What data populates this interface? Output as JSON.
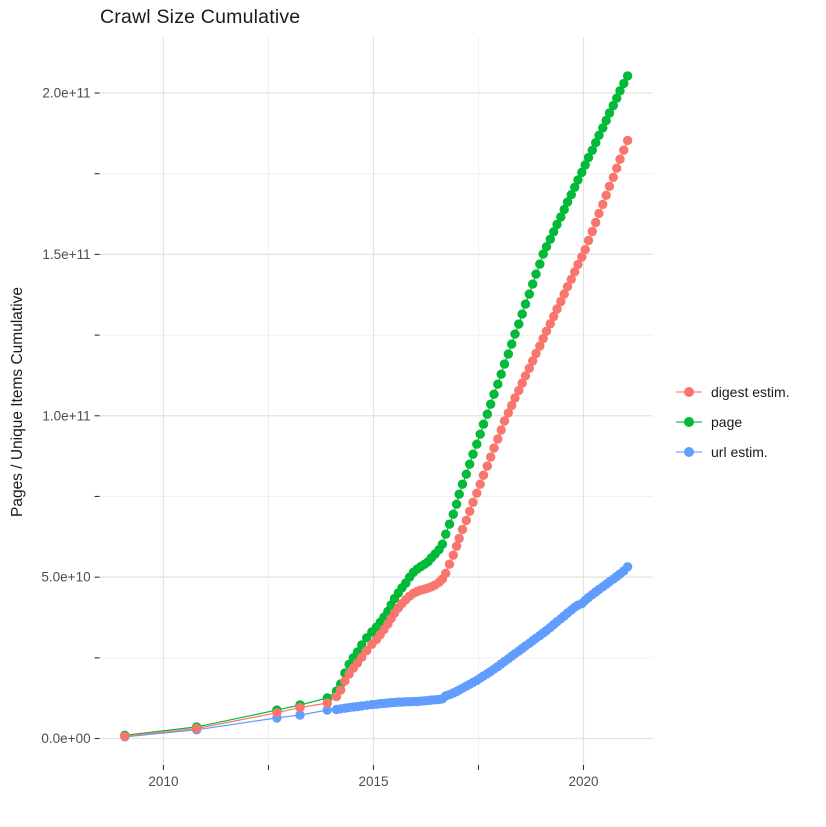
{
  "title": "Crawl Size Cumulative",
  "colors": {
    "digest": "#F8766D",
    "page": "#00BA38",
    "url": "#619CFF",
    "grid_major": "#e3e3e3",
    "grid_minor": "#f0f0f0",
    "tick_mark": "#333333",
    "tick_label": "#4d4d4d",
    "text": "#1a1a1a",
    "background": "#ffffff"
  },
  "legend": {
    "items": [
      {
        "id": "digest",
        "label": "digest estim."
      },
      {
        "id": "page",
        "label": "page"
      },
      {
        "id": "url",
        "label": "url estim."
      }
    ]
  },
  "chart_data": {
    "type": "scatter",
    "title": "Crawl Size Cumulative",
    "xlabel": "",
    "ylabel": "Pages / Unique Items Cumulative",
    "legend_position": "right",
    "grid": true,
    "xlim": [
      2008.48,
      2021.65
    ],
    "ylim_e9": [
      -8.2,
      217.3
    ],
    "x_major_ticks": [
      2010,
      2015,
      2020
    ],
    "x_tick_labels": [
      "2010",
      "2015",
      "2020"
    ],
    "x_minor_ticks": [
      2012.5,
      2017.5
    ],
    "y_major_ticks_e9": [
      0,
      50,
      100,
      150,
      200
    ],
    "y_tick_labels": [
      "0.0e+00",
      "5.0e+10",
      "1.0e+11",
      "1.5e+11",
      "2.0e+11"
    ],
    "y_minor_ticks_e9": [
      25,
      75,
      125,
      175
    ],
    "points_unit": "billions of pages / unique items (value * 1e9)",
    "series": [
      {
        "id": "page",
        "name": "page",
        "color": "#00BA38",
        "points": [
          [
            2009.08,
            1.0
          ],
          [
            2010.79,
            3.6
          ],
          [
            2012.7,
            8.8
          ],
          [
            2013.25,
            10.4
          ],
          [
            2013.9,
            12.6
          ],
          [
            2014.12,
            14.7
          ],
          [
            2014.22,
            16.9
          ],
          [
            2014.32,
            20.3
          ],
          [
            2014.42,
            23.0
          ],
          [
            2014.52,
            25.0
          ],
          [
            2014.62,
            26.8
          ],
          [
            2014.72,
            29.0
          ],
          [
            2014.84,
            31.2
          ],
          [
            2014.96,
            33.0
          ],
          [
            2015.07,
            34.5
          ],
          [
            2015.16,
            36.0
          ],
          [
            2015.25,
            37.6
          ],
          [
            2015.34,
            39.4
          ],
          [
            2015.42,
            41.4
          ],
          [
            2015.5,
            43.4
          ],
          [
            2015.59,
            45.1
          ],
          [
            2015.68,
            46.7
          ],
          [
            2015.77,
            48.2
          ],
          [
            2015.86,
            50.0
          ],
          [
            2015.95,
            51.5
          ],
          [
            2016.04,
            52.5
          ],
          [
            2016.13,
            53.3
          ],
          [
            2016.22,
            54.0
          ],
          [
            2016.3,
            54.8
          ],
          [
            2016.38,
            56.0
          ],
          [
            2016.47,
            57.2
          ],
          [
            2016.56,
            58.5
          ],
          [
            2016.64,
            60.2
          ],
          [
            2016.72,
            63.3
          ],
          [
            2016.81,
            66.4
          ],
          [
            2016.9,
            69.5
          ],
          [
            2016.98,
            72.6
          ],
          [
            2017.04,
            75.7
          ],
          [
            2017.12,
            78.8
          ],
          [
            2017.21,
            81.9
          ],
          [
            2017.29,
            85.0
          ],
          [
            2017.37,
            88.1
          ],
          [
            2017.46,
            91.2
          ],
          [
            2017.54,
            94.3
          ],
          [
            2017.62,
            97.4
          ],
          [
            2017.71,
            100.5
          ],
          [
            2017.79,
            103.6
          ],
          [
            2017.87,
            106.7
          ],
          [
            2017.96,
            109.8
          ],
          [
            2018.04,
            112.9
          ],
          [
            2018.12,
            116.0
          ],
          [
            2018.21,
            119.1
          ],
          [
            2018.29,
            122.2
          ],
          [
            2018.37,
            125.3
          ],
          [
            2018.46,
            128.4
          ],
          [
            2018.54,
            131.5
          ],
          [
            2018.62,
            134.6
          ],
          [
            2018.71,
            137.7
          ],
          [
            2018.79,
            140.8
          ],
          [
            2018.87,
            143.9
          ],
          [
            2018.96,
            147.0
          ],
          [
            2019.04,
            150.1
          ],
          [
            2019.12,
            152.4
          ],
          [
            2019.21,
            154.7
          ],
          [
            2019.29,
            157.0
          ],
          [
            2019.37,
            159.3
          ],
          [
            2019.46,
            161.6
          ],
          [
            2019.54,
            163.9
          ],
          [
            2019.62,
            166.2
          ],
          [
            2019.71,
            168.5
          ],
          [
            2019.79,
            170.8
          ],
          [
            2019.87,
            173.1
          ],
          [
            2019.96,
            175.4
          ],
          [
            2020.04,
            177.7
          ],
          [
            2020.12,
            180.0
          ],
          [
            2020.21,
            182.3
          ],
          [
            2020.29,
            184.6
          ],
          [
            2020.37,
            186.9
          ],
          [
            2020.46,
            189.2
          ],
          [
            2020.54,
            191.5
          ],
          [
            2020.62,
            193.8
          ],
          [
            2020.71,
            196.1
          ],
          [
            2020.79,
            198.4
          ],
          [
            2020.87,
            200.7
          ],
          [
            2020.96,
            203.0
          ],
          [
            2021.05,
            205.3
          ]
        ]
      },
      {
        "id": "url",
        "name": "url estim.",
        "color": "#619CFF",
        "points": [
          [
            2009.08,
            0.55
          ],
          [
            2010.79,
            2.7
          ],
          [
            2012.7,
            6.4
          ],
          [
            2013.25,
            7.3
          ],
          [
            2013.9,
            8.8
          ],
          [
            2014.12,
            9.0
          ],
          [
            2014.22,
            9.2
          ],
          [
            2014.32,
            9.4
          ],
          [
            2014.42,
            9.6
          ],
          [
            2014.52,
            9.8
          ],
          [
            2014.62,
            9.9
          ],
          [
            2014.72,
            10.1
          ],
          [
            2014.84,
            10.3
          ],
          [
            2014.96,
            10.5
          ],
          [
            2015.07,
            10.6
          ],
          [
            2015.16,
            10.8
          ],
          [
            2015.25,
            10.9
          ],
          [
            2015.34,
            11.0
          ],
          [
            2015.42,
            11.1
          ],
          [
            2015.5,
            11.2
          ],
          [
            2015.59,
            11.3
          ],
          [
            2015.68,
            11.3
          ],
          [
            2015.77,
            11.4
          ],
          [
            2015.86,
            11.4
          ],
          [
            2015.95,
            11.5
          ],
          [
            2016.04,
            11.5
          ],
          [
            2016.13,
            11.6
          ],
          [
            2016.22,
            11.7
          ],
          [
            2016.3,
            11.8
          ],
          [
            2016.38,
            11.9
          ],
          [
            2016.47,
            12.0
          ],
          [
            2016.56,
            12.1
          ],
          [
            2016.64,
            12.3
          ],
          [
            2016.72,
            13.2
          ],
          [
            2016.81,
            13.6
          ],
          [
            2016.9,
            14.1
          ],
          [
            2016.98,
            14.6
          ],
          [
            2017.04,
            15.0
          ],
          [
            2017.12,
            15.6
          ],
          [
            2017.21,
            16.2
          ],
          [
            2017.29,
            16.8
          ],
          [
            2017.37,
            17.4
          ],
          [
            2017.46,
            18.0
          ],
          [
            2017.54,
            18.7
          ],
          [
            2017.62,
            19.4
          ],
          [
            2017.71,
            20.1
          ],
          [
            2017.79,
            20.8
          ],
          [
            2017.87,
            21.5
          ],
          [
            2017.96,
            22.3
          ],
          [
            2018.04,
            23.1
          ],
          [
            2018.12,
            23.9
          ],
          [
            2018.21,
            24.7
          ],
          [
            2018.29,
            25.5
          ],
          [
            2018.37,
            26.3
          ],
          [
            2018.46,
            27.1
          ],
          [
            2018.54,
            27.9
          ],
          [
            2018.62,
            28.7
          ],
          [
            2018.71,
            29.5
          ],
          [
            2018.79,
            30.3
          ],
          [
            2018.87,
            31.1
          ],
          [
            2018.96,
            31.9
          ],
          [
            2019.04,
            32.7
          ],
          [
            2019.12,
            33.5
          ],
          [
            2019.21,
            34.4
          ],
          [
            2019.29,
            35.3
          ],
          [
            2019.37,
            36.2
          ],
          [
            2019.46,
            37.1
          ],
          [
            2019.54,
            38.0
          ],
          [
            2019.62,
            38.9
          ],
          [
            2019.71,
            39.8
          ],
          [
            2019.79,
            40.7
          ],
          [
            2019.87,
            41.3
          ],
          [
            2019.96,
            41.8
          ],
          [
            2020.04,
            42.8
          ],
          [
            2020.12,
            43.7
          ],
          [
            2020.21,
            44.6
          ],
          [
            2020.29,
            45.4
          ],
          [
            2020.37,
            46.2
          ],
          [
            2020.46,
            47.0
          ],
          [
            2020.54,
            47.8
          ],
          [
            2020.62,
            48.6
          ],
          [
            2020.71,
            49.4
          ],
          [
            2020.79,
            50.2
          ],
          [
            2020.87,
            51.0
          ],
          [
            2020.96,
            51.9
          ],
          [
            2021.05,
            53.2
          ]
        ]
      },
      {
        "id": "digest",
        "name": "digest estim.",
        "color": "#F8766D",
        "points": [
          [
            2009.08,
            0.7
          ],
          [
            2010.79,
            3.1
          ],
          [
            2012.7,
            8.0
          ],
          [
            2013.25,
            9.6
          ],
          [
            2013.9,
            11.0
          ],
          [
            2014.12,
            13.0
          ],
          [
            2014.22,
            15.0
          ],
          [
            2014.32,
            17.8
          ],
          [
            2014.42,
            20.0
          ],
          [
            2014.52,
            21.8
          ],
          [
            2014.62,
            23.4
          ],
          [
            2014.72,
            25.2
          ],
          [
            2014.84,
            27.2
          ],
          [
            2014.96,
            29.2
          ],
          [
            2015.07,
            30.7
          ],
          [
            2015.16,
            32.2
          ],
          [
            2015.25,
            33.8
          ],
          [
            2015.34,
            35.5
          ],
          [
            2015.42,
            37.2
          ],
          [
            2015.5,
            38.9
          ],
          [
            2015.59,
            40.4
          ],
          [
            2015.68,
            41.8
          ],
          [
            2015.77,
            43.0
          ],
          [
            2015.86,
            44.1
          ],
          [
            2015.95,
            45.0
          ],
          [
            2016.04,
            45.6
          ],
          [
            2016.13,
            46.0
          ],
          [
            2016.22,
            46.3
          ],
          [
            2016.3,
            46.6
          ],
          [
            2016.38,
            47.0
          ],
          [
            2016.47,
            47.6
          ],
          [
            2016.56,
            48.4
          ],
          [
            2016.64,
            49.4
          ],
          [
            2016.72,
            51.2
          ],
          [
            2016.81,
            54.0
          ],
          [
            2016.9,
            56.8
          ],
          [
            2016.98,
            59.6
          ],
          [
            2017.04,
            62.0
          ],
          [
            2017.12,
            64.8
          ],
          [
            2017.21,
            67.6
          ],
          [
            2017.29,
            70.4
          ],
          [
            2017.37,
            73.2
          ],
          [
            2017.46,
            76.0
          ],
          [
            2017.54,
            78.8
          ],
          [
            2017.62,
            81.6
          ],
          [
            2017.71,
            84.4
          ],
          [
            2017.79,
            87.2
          ],
          [
            2017.87,
            90.0
          ],
          [
            2017.96,
            92.8
          ],
          [
            2018.04,
            95.6
          ],
          [
            2018.12,
            98.4
          ],
          [
            2018.21,
            100.9
          ],
          [
            2018.29,
            103.2
          ],
          [
            2018.37,
            105.5
          ],
          [
            2018.46,
            107.8
          ],
          [
            2018.54,
            110.1
          ],
          [
            2018.62,
            112.4
          ],
          [
            2018.71,
            114.7
          ],
          [
            2018.79,
            117.0
          ],
          [
            2018.87,
            119.3
          ],
          [
            2018.96,
            121.6
          ],
          [
            2019.04,
            123.9
          ],
          [
            2019.12,
            126.2
          ],
          [
            2019.21,
            128.5
          ],
          [
            2019.29,
            130.8
          ],
          [
            2019.37,
            133.1
          ],
          [
            2019.46,
            135.4
          ],
          [
            2019.54,
            137.7
          ],
          [
            2019.62,
            140.0
          ],
          [
            2019.71,
            142.3
          ],
          [
            2019.79,
            144.6
          ],
          [
            2019.87,
            146.9
          ],
          [
            2019.96,
            149.2
          ],
          [
            2020.04,
            151.5
          ],
          [
            2020.12,
            154.3
          ],
          [
            2020.21,
            157.1
          ],
          [
            2020.29,
            159.9
          ],
          [
            2020.37,
            162.7
          ],
          [
            2020.46,
            165.5
          ],
          [
            2020.54,
            168.3
          ],
          [
            2020.62,
            171.1
          ],
          [
            2020.71,
            173.9
          ],
          [
            2020.79,
            176.7
          ],
          [
            2020.87,
            179.5
          ],
          [
            2020.96,
            182.3
          ],
          [
            2021.05,
            185.3
          ]
        ]
      }
    ]
  }
}
